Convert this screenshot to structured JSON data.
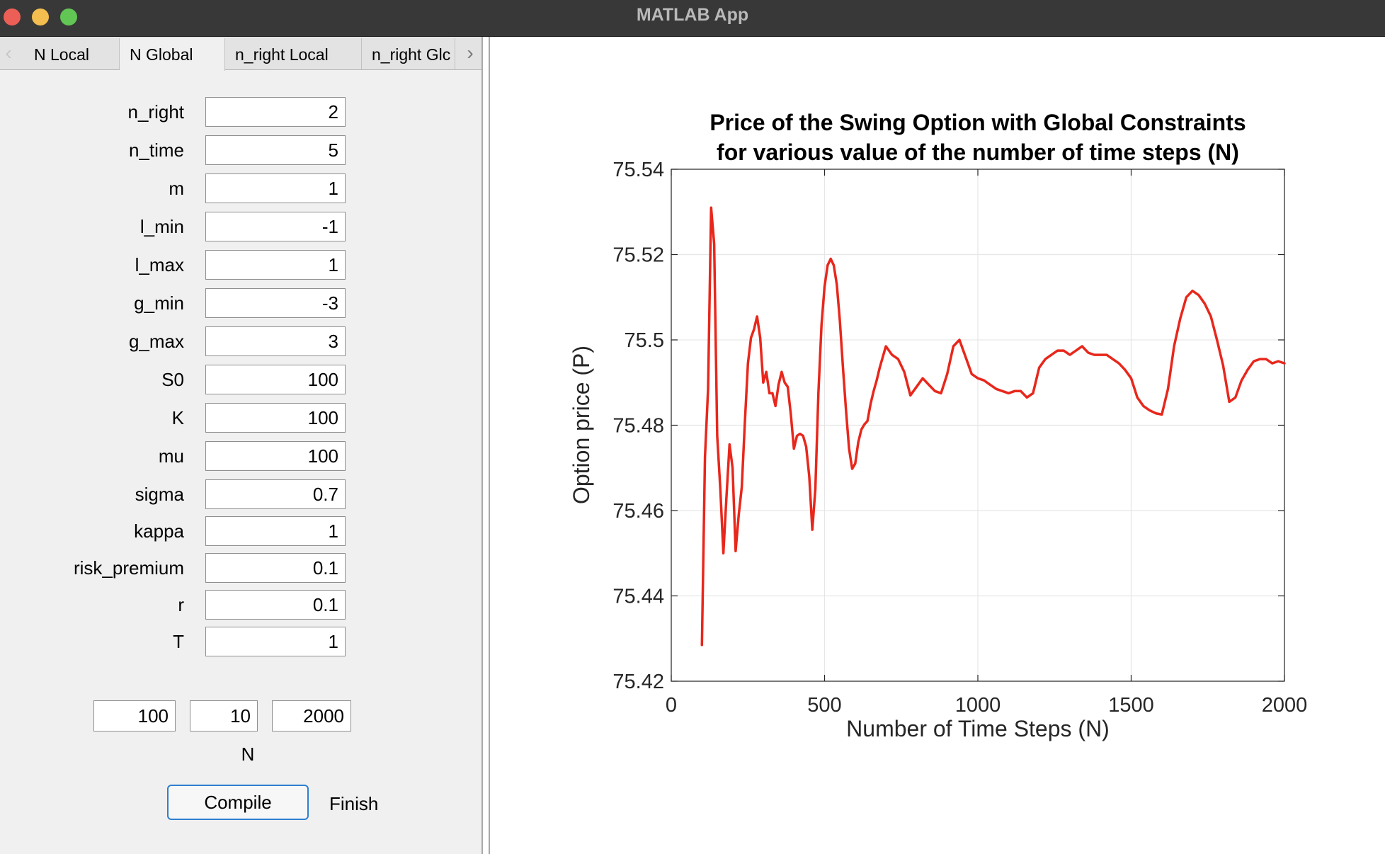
{
  "window": {
    "title": "MATLAB App"
  },
  "tabs": [
    {
      "label": "N Local",
      "active": false
    },
    {
      "label": "N Global",
      "active": true
    },
    {
      "label": "n_right Local",
      "active": false
    },
    {
      "label": "n_right Glc",
      "active": false
    }
  ],
  "params": [
    {
      "label": "n_right",
      "value": "2"
    },
    {
      "label": "n_time",
      "value": "5"
    },
    {
      "label": "m",
      "value": "1"
    },
    {
      "label": "l_min",
      "value": "-1"
    },
    {
      "label": "l_max",
      "value": "1"
    },
    {
      "label": "g_min",
      "value": "-3"
    },
    {
      "label": "g_max",
      "value": "3"
    },
    {
      "label": "S0",
      "value": "100"
    },
    {
      "label": "K",
      "value": "100"
    },
    {
      "label": "mu",
      "value": "100"
    },
    {
      "label": "sigma",
      "value": "0.7"
    },
    {
      "label": "kappa",
      "value": "1"
    },
    {
      "label": "risk_premium",
      "value": "0.1"
    },
    {
      "label": "r",
      "value": "0.1"
    },
    {
      "label": "T",
      "value": "1"
    }
  ],
  "n_range": {
    "start": "100",
    "step": "10",
    "end": "2000",
    "label": "N"
  },
  "buttons": {
    "compile": "Compile",
    "finish": "Finish"
  },
  "colors": {
    "line": "#e8271c",
    "grid": "#e6e6e6"
  },
  "chart_data": {
    "type": "line",
    "title_lines": [
      "Price of the Swing Option with Global Constraints",
      "for various value of the number of time steps (N)"
    ],
    "xlabel": "Number of Time Steps (N)",
    "ylabel": "Option price (P)",
    "xlim": [
      0,
      2000
    ],
    "ylim": [
      75.42,
      75.54
    ],
    "xticks": [
      0,
      500,
      1000,
      1500,
      2000
    ],
    "xtick_labels": [
      "0",
      "500",
      "1000",
      "1500",
      "2000"
    ],
    "yticks": [
      75.42,
      75.44,
      75.46,
      75.48,
      75.5,
      75.52,
      75.54
    ],
    "ytick_labels": [
      "75.42",
      "75.44",
      "75.46",
      "75.48",
      "75.5",
      "75.52",
      "75.54"
    ],
    "grid": true,
    "series": [
      {
        "color": "#e8271c",
        "x": [
          100,
          110,
          120,
          130,
          140,
          150,
          160,
          170,
          180,
          190,
          200,
          210,
          220,
          230,
          240,
          250,
          260,
          270,
          280,
          290,
          300,
          310,
          320,
          330,
          340,
          350,
          360,
          370,
          380,
          390,
          400,
          410,
          420,
          430,
          440,
          450,
          460,
          470,
          480,
          490,
          500,
          510,
          520,
          530,
          540,
          550,
          560,
          570,
          580,
          590,
          600,
          610,
          620,
          630,
          640,
          650,
          660,
          670,
          680,
          700,
          720,
          740,
          760,
          780,
          800,
          820,
          840,
          860,
          880,
          900,
          920,
          940,
          960,
          980,
          1000,
          1020,
          1040,
          1060,
          1080,
          1100,
          1120,
          1140,
          1160,
          1180,
          1200,
          1220,
          1240,
          1260,
          1280,
          1300,
          1320,
          1340,
          1360,
          1380,
          1400,
          1420,
          1440,
          1460,
          1480,
          1500,
          1520,
          1540,
          1560,
          1580,
          1600,
          1620,
          1640,
          1660,
          1680,
          1700,
          1720,
          1740,
          1760,
          1780,
          1800,
          1820,
          1840,
          1860,
          1880,
          1900,
          1920,
          1940,
          1960,
          1980,
          2000
        ],
        "y": [
          75.4285,
          75.4725,
          75.4885,
          75.531,
          75.5225,
          75.4775,
          75.465,
          75.45,
          75.463,
          75.4755,
          75.47,
          75.4505,
          75.459,
          75.4655,
          75.4805,
          75.4945,
          75.5005,
          75.5025,
          75.5055,
          75.5005,
          75.49,
          75.4925,
          75.4875,
          75.4875,
          75.4845,
          75.4895,
          75.4925,
          75.49,
          75.489,
          75.4825,
          75.4745,
          75.4775,
          75.478,
          75.4775,
          75.475,
          75.468,
          75.4555,
          75.465,
          75.4875,
          75.5035,
          75.5125,
          75.5175,
          75.519,
          75.5175,
          75.513,
          75.5045,
          75.4935,
          75.4835,
          75.4745,
          75.4698,
          75.471,
          75.476,
          75.479,
          75.4802,
          75.481,
          75.485,
          75.488,
          75.4905,
          75.4935,
          75.4985,
          75.4965,
          75.4955,
          75.4925,
          75.487,
          75.489,
          75.491,
          75.4895,
          75.488,
          75.4875,
          75.492,
          75.4985,
          75.5,
          75.496,
          75.492,
          75.491,
          75.4905,
          75.4895,
          75.4885,
          75.488,
          75.4875,
          75.488,
          75.488,
          75.4865,
          75.4875,
          75.4935,
          75.4955,
          75.4965,
          75.4975,
          75.4975,
          75.4965,
          75.4975,
          75.4985,
          75.497,
          75.4965,
          75.4965,
          75.4965,
          75.4955,
          75.4945,
          75.493,
          75.491,
          75.4865,
          75.4845,
          75.4835,
          75.4828,
          75.4825,
          75.4885,
          75.4985,
          75.505,
          75.51,
          75.5115,
          75.5105,
          75.5085,
          75.5055,
          75.5,
          75.494,
          75.4855,
          75.4865,
          75.4905,
          75.493,
          75.495,
          75.4955,
          75.4955,
          75.4945,
          75.495,
          75.4945
        ]
      }
    ]
  }
}
